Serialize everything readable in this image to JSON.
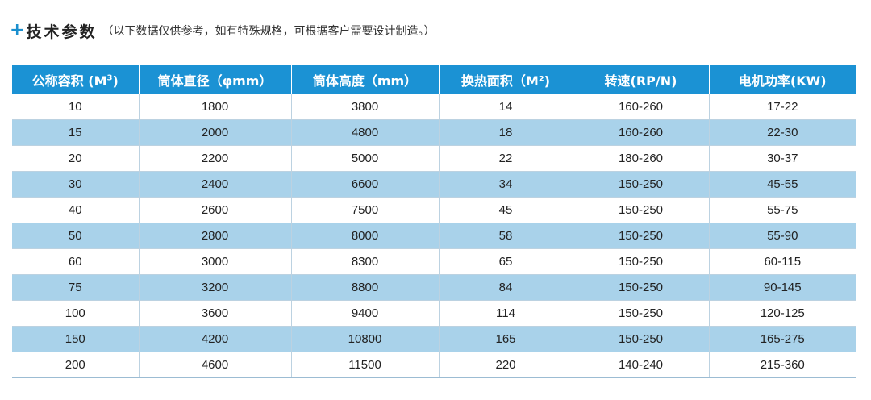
{
  "heading": {
    "plus": "+",
    "title": "技术参数",
    "note": "（以下数据仅供参考，如有特殊规格，可根据客户需要设计制造。）"
  },
  "table": {
    "headers": [
      {
        "text": "公称容积 (M",
        "sup": "3",
        "after": ")"
      },
      {
        "text": "筒体直径（φmm）"
      },
      {
        "text": "筒体高度（mm）"
      },
      {
        "text": "换热面积（M²)"
      },
      {
        "text": "转速(RP/N)"
      },
      {
        "text": "电机功率(KW)"
      }
    ],
    "rows": [
      [
        "10",
        "1800",
        "3800",
        "14",
        "160-260",
        "17-22"
      ],
      [
        "15",
        "2000",
        "4800",
        "18",
        "160-260",
        "22-30"
      ],
      [
        "20",
        "2200",
        "5000",
        "22",
        "180-260",
        "30-37"
      ],
      [
        "30",
        "2400",
        "6600",
        "34",
        "150-250",
        "45-55"
      ],
      [
        "40",
        "2600",
        "7500",
        "45",
        "150-250",
        "55-75"
      ],
      [
        "50",
        "2800",
        "8000",
        "58",
        "150-250",
        "55-90"
      ],
      [
        "60",
        "3000",
        "8300",
        "65",
        "150-250",
        "60-115"
      ],
      [
        "75",
        "3200",
        "8800",
        "84",
        "150-250",
        "90-145"
      ],
      [
        "100",
        "3600",
        "9400",
        "114",
        "150-250",
        "120-125"
      ],
      [
        "150",
        "4200",
        "10800",
        "165",
        "150-250",
        "165-275"
      ],
      [
        "200",
        "4600",
        "11500",
        "220",
        "140-240",
        "215-360"
      ]
    ]
  },
  "colors": {
    "accent": "#1b92d4",
    "row_alt": "#a9d2ea"
  }
}
